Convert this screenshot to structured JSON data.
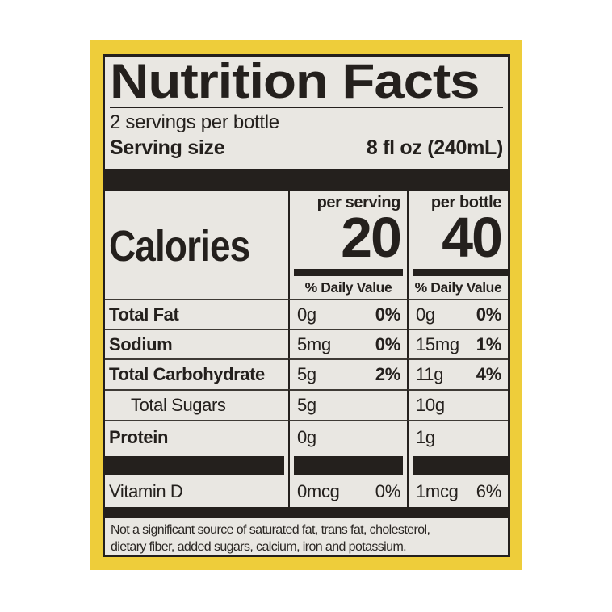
{
  "colors": {
    "page_bg": "#ffffff",
    "frame_yellow": "#eecd3a",
    "label_bg": "#e9e7e2",
    "ink": "#24201d"
  },
  "label": {
    "title": "Nutrition Facts",
    "servings_per_container": "2 servings per bottle",
    "serving_size_label": "Serving size",
    "serving_size_value": "8 fl oz (240mL)",
    "calories": {
      "name": "Calories",
      "columns": [
        {
          "header": "per serving",
          "value": "20"
        },
        {
          "header": "per bottle",
          "value": "40"
        }
      ],
      "daily_value_header": "% Daily Value"
    },
    "nutrients": [
      {
        "name": "Total Fat",
        "per_serving": {
          "amount": "0g",
          "dv": "0%"
        },
        "per_bottle": {
          "amount": "0g",
          "dv": "0%"
        }
      },
      {
        "name": "Sodium",
        "per_serving": {
          "amount": "5mg",
          "dv": "0%"
        },
        "per_bottle": {
          "amount": "15mg",
          "dv": "1%"
        }
      },
      {
        "name": "Total Carbohydrate",
        "per_serving": {
          "amount": "5g",
          "dv": "2%"
        },
        "per_bottle": {
          "amount": "11g",
          "dv": "4%"
        }
      },
      {
        "name": "Total Sugars",
        "per_serving": {
          "amount": "5g",
          "dv": ""
        },
        "per_bottle": {
          "amount": "10g",
          "dv": ""
        }
      },
      {
        "name": "Protein",
        "per_serving": {
          "amount": "0g",
          "dv": ""
        },
        "per_bottle": {
          "amount": "1g",
          "dv": ""
        }
      }
    ],
    "vitamins": [
      {
        "name": "Vitamin D",
        "per_serving": {
          "amount": "0mcg",
          "dv": "0%"
        },
        "per_bottle": {
          "amount": "1mcg",
          "dv": "6%"
        }
      }
    ],
    "footnote_lines": [
      "Not a significant source of saturated fat, trans fat, cholesterol,",
      "dietary fiber, added sugars, calcium, iron and potassium."
    ]
  }
}
